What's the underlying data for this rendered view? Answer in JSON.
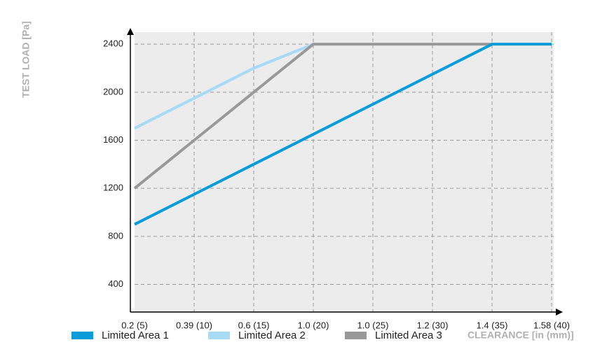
{
  "chart_data": {
    "type": "line",
    "y_label": "TEST LOAD [Pa]",
    "x_label": "CLEARANCE [in (mm)]",
    "categories": [
      "0.2 (5)",
      "0.39 (10)",
      "0.6 (15)",
      "1.0 (20)",
      "1.0 (25)",
      "1.2 (30)",
      "1.4 (35)",
      "1.58 (40)"
    ],
    "series": [
      {
        "name": "Limited Area 1",
        "color": "#0a9bd9",
        "values": [
          900,
          1150,
          1400,
          1650,
          1900,
          2150,
          2400,
          2400
        ]
      },
      {
        "name": "Limited Area 2",
        "color": "#a8d9f5",
        "values": [
          1700,
          1950,
          2200,
          2400,
          null,
          null,
          null,
          null
        ]
      },
      {
        "name": "Limited Area 3",
        "color": "#999999",
        "values": [
          1200,
          1600,
          2000,
          2400,
          2400,
          2400,
          2400,
          null
        ]
      }
    ],
    "ylim": [
      170,
      2500
    ],
    "yticks": [
      400,
      800,
      1200,
      1600,
      2000,
      2400
    ],
    "grid": true
  }
}
